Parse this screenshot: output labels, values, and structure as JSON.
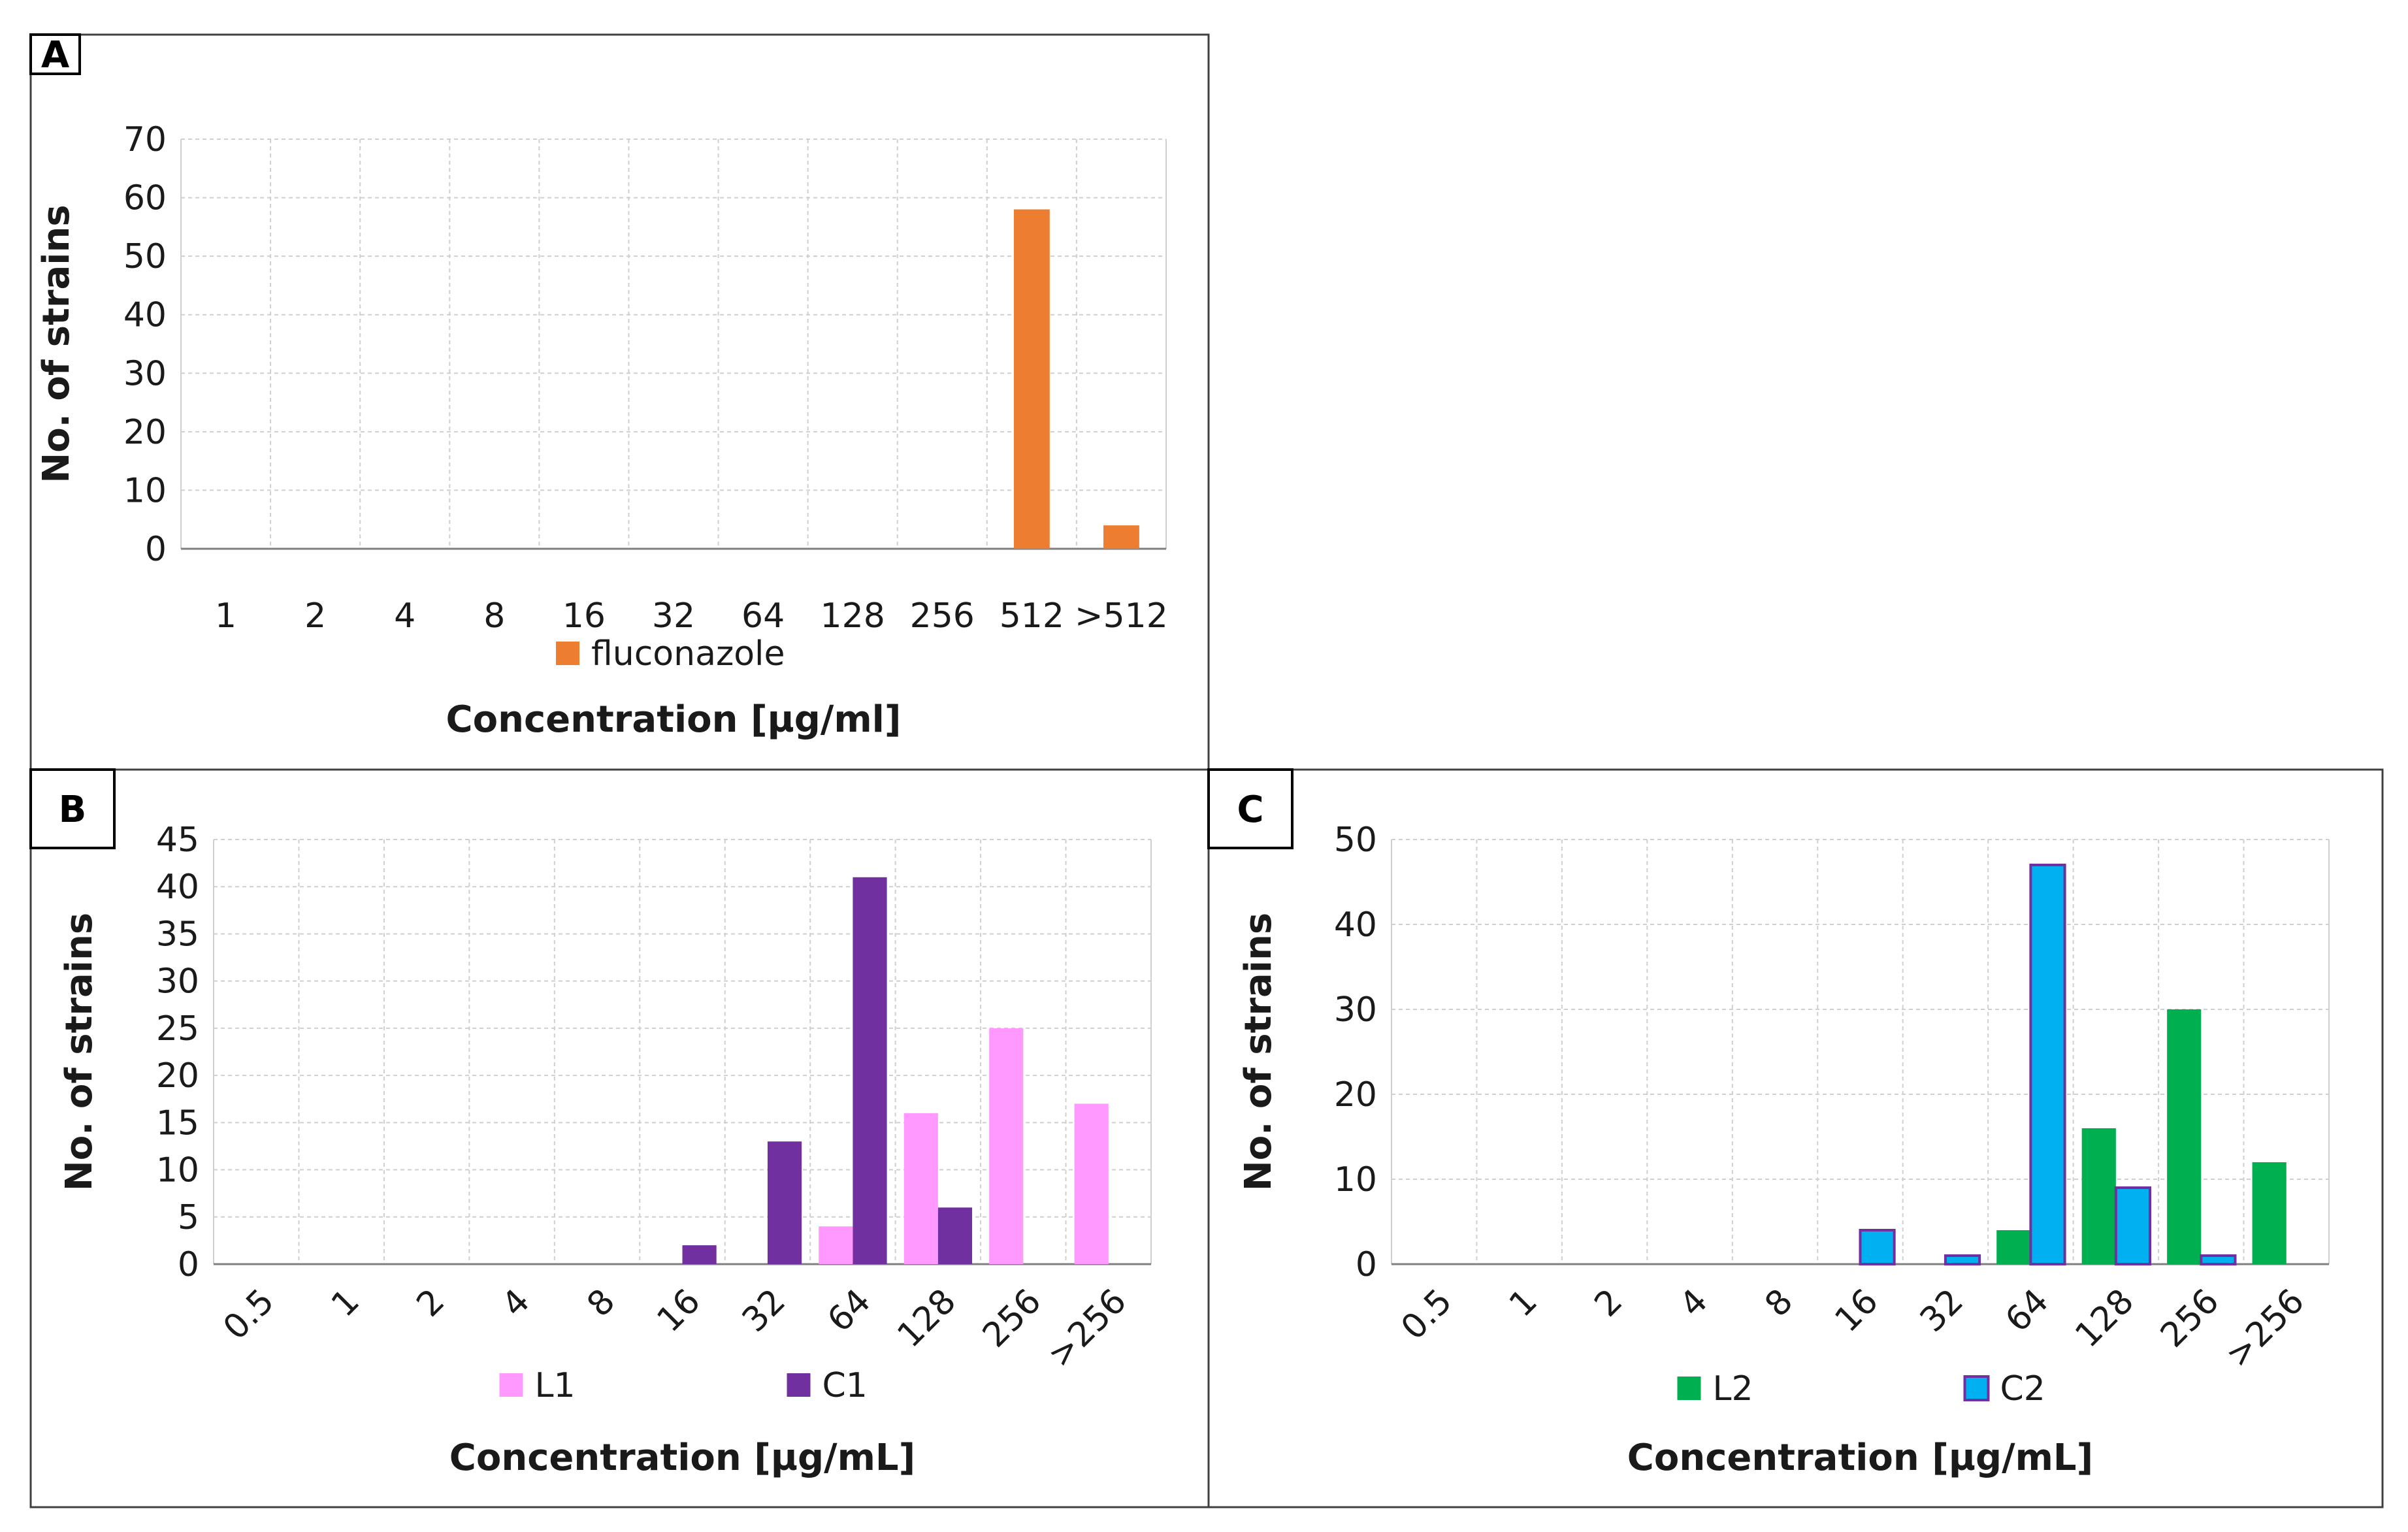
{
  "chart_data": [
    {
      "panel": "A",
      "type": "bar",
      "categories": [
        "1",
        "2",
        "4",
        "8",
        "16",
        "32",
        "64",
        "128",
        "256",
        "512",
        ">512"
      ],
      "series": [
        {
          "name": "fluconazole",
          "color": "#ed7d31",
          "values": [
            0,
            0,
            0,
            0,
            0,
            0,
            0,
            0,
            0,
            58,
            4
          ]
        }
      ],
      "xlabel": "Concentration [µg/ml]",
      "ylabel": "No. of strains",
      "ylim": [
        0,
        70
      ],
      "yticks": [
        0,
        10,
        20,
        30,
        40,
        50,
        60,
        70
      ],
      "grid": true,
      "legend": "bottom",
      "xtick_rotation": 0
    },
    {
      "panel": "B",
      "type": "bar",
      "categories": [
        "0.5",
        "1",
        "2",
        "4",
        "8",
        "16",
        "32",
        "64",
        "128",
        "256",
        ">256"
      ],
      "series": [
        {
          "name": "L1",
          "color": "#ff99ff",
          "values": [
            0,
            0,
            0,
            0,
            0,
            0,
            0,
            4,
            16,
            25,
            17
          ]
        },
        {
          "name": "C1",
          "color": "#7030a0",
          "values": [
            0,
            0,
            0,
            0,
            0,
            2,
            13,
            41,
            6,
            0,
            0
          ]
        }
      ],
      "xlabel": "Concentration [µg/mL]",
      "ylabel": "No. of strains",
      "ylim": [
        0,
        45
      ],
      "yticks": [
        0,
        5,
        10,
        15,
        20,
        25,
        30,
        35,
        40,
        45
      ],
      "grid": true,
      "legend": "bottom",
      "xtick_rotation": -45
    },
    {
      "panel": "C",
      "type": "bar",
      "categories": [
        "0.5",
        "1",
        "2",
        "4",
        "8",
        "16",
        "32",
        "64",
        "128",
        "256",
        ">256"
      ],
      "series": [
        {
          "name": "L2",
          "color": "#00b050",
          "values": [
            0,
            0,
            0,
            0,
            0,
            0,
            0,
            4,
            16,
            30,
            12
          ]
        },
        {
          "name": "C2",
          "color": "#00b0f0",
          "stroke": "#7030a0",
          "values": [
            0,
            0,
            0,
            0,
            0,
            4,
            1,
            47,
            9,
            1,
            0
          ]
        }
      ],
      "xlabel": "Concentration [µg/mL]",
      "ylabel": "No. of strains",
      "ylim": [
        0,
        50
      ],
      "yticks": [
        0,
        10,
        20,
        30,
        40,
        50
      ],
      "grid": true,
      "legend": "bottom",
      "xtick_rotation": -45
    }
  ]
}
